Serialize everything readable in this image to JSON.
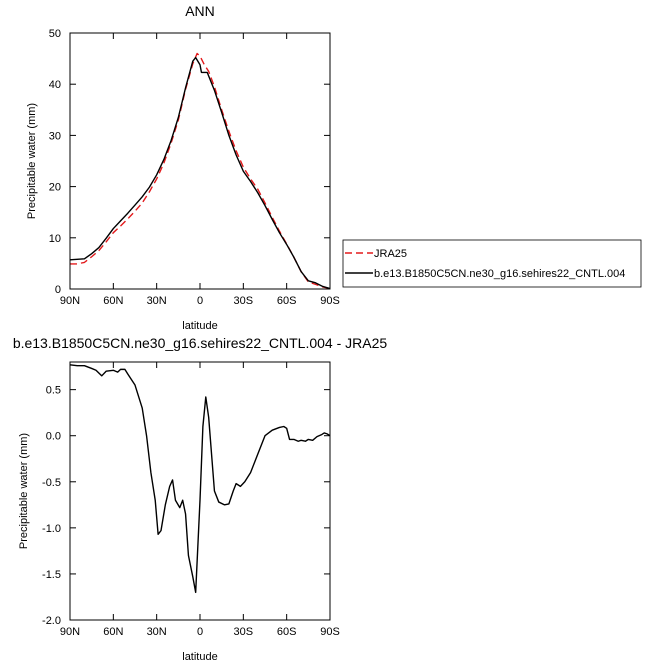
{
  "chart_data": [
    {
      "type": "line",
      "title": "ANN",
      "xlabel": "latitude",
      "ylabel": "Precipitable water (mm)",
      "xlim": [
        90,
        -90
      ],
      "ylim": [
        0,
        50
      ],
      "x_tick_values": [
        90,
        60,
        30,
        0,
        -30,
        -60,
        -90
      ],
      "x_tick_labels": [
        "90N",
        "60N",
        "30N",
        "0",
        "30S",
        "60S",
        "90S"
      ],
      "y_tick_values": [
        0,
        10,
        20,
        30,
        40,
        50
      ],
      "y_tick_labels": [
        "0",
        "10",
        "20",
        "30",
        "40",
        "50"
      ],
      "grid": false,
      "legend_position": "right",
      "series": [
        {
          "name": "JRA25",
          "color": "#e31a1c",
          "dash": "dashed",
          "points": [
            [
              90,
              4.9
            ],
            [
              85,
              4.9
            ],
            [
              80,
              5.2
            ],
            [
              75,
              6.3
            ],
            [
              70,
              7.5
            ],
            [
              65,
              9.2
            ],
            [
              60,
              11.0
            ],
            [
              55,
              12.3
            ],
            [
              50,
              13.7
            ],
            [
              45,
              15.2
            ],
            [
              40,
              16.8
            ],
            [
              35,
              19.0
            ],
            [
              30,
              21.5
            ],
            [
              25,
              24.6
            ],
            [
              20,
              28.5
            ],
            [
              15,
              33.0
            ],
            [
              10,
              39.0
            ],
            [
              5,
              44.0
            ],
            [
              2,
              46.0
            ],
            [
              0,
              45.5
            ],
            [
              -3,
              43.8
            ],
            [
              -6,
              42.5
            ],
            [
              -10,
              39.5
            ],
            [
              -15,
              35.0
            ],
            [
              -20,
              30.8
            ],
            [
              -25,
              27.0
            ],
            [
              -30,
              23.8
            ],
            [
              -35,
              21.5
            ],
            [
              -40,
              19.5
            ],
            [
              -45,
              16.8
            ],
            [
              -50,
              14.0
            ],
            [
              -55,
              11.3
            ],
            [
              -60,
              8.8
            ],
            [
              -65,
              6.2
            ],
            [
              -70,
              3.4
            ],
            [
              -75,
              1.4
            ],
            [
              -80,
              0.9
            ],
            [
              -85,
              0.4
            ],
            [
              -90,
              0.1
            ]
          ]
        },
        {
          "name": "b.e13.B1850C5CN.ne30_g16.sehires22_CNTL.004",
          "color": "#000000",
          "dash": "solid",
          "points": [
            [
              90,
              5.7
            ],
            [
              85,
              5.8
            ],
            [
              80,
              5.9
            ],
            [
              75,
              6.9
            ],
            [
              70,
              8.1
            ],
            [
              65,
              9.9
            ],
            [
              60,
              11.8
            ],
            [
              55,
              13.3
            ],
            [
              50,
              14.8
            ],
            [
              45,
              16.4
            ],
            [
              40,
              18.0
            ],
            [
              35,
              19.9
            ],
            [
              30,
              22.3
            ],
            [
              25,
              25.3
            ],
            [
              20,
              29.0
            ],
            [
              15,
              33.5
            ],
            [
              10,
              39.3
            ],
            [
              5,
              44.5
            ],
            [
              3,
              45.2
            ],
            [
              0,
              43.8
            ],
            [
              -1,
              42.3
            ],
            [
              -5,
              42.3
            ],
            [
              -10,
              38.8
            ],
            [
              -15,
              34.5
            ],
            [
              -20,
              30.0
            ],
            [
              -25,
              26.2
            ],
            [
              -30,
              23.0
            ],
            [
              -35,
              21.0
            ],
            [
              -40,
              18.8
            ],
            [
              -45,
              16.3
            ],
            [
              -50,
              13.6
            ],
            [
              -55,
              11.0
            ],
            [
              -60,
              8.7
            ],
            [
              -65,
              6.2
            ],
            [
              -70,
              3.4
            ],
            [
              -75,
              1.6
            ],
            [
              -80,
              1.2
            ],
            [
              -85,
              0.5
            ],
            [
              -90,
              0.1
            ]
          ]
        }
      ]
    },
    {
      "type": "line",
      "title": "b.e13.B1850C5CN.ne30_g16.sehires22_CNTL.004 - JRA25",
      "xlabel": "latitude",
      "ylabel": "Precipitable water (mm)",
      "xlim": [
        90,
        -90
      ],
      "ylim": [
        -2.0,
        0.8
      ],
      "x_tick_values": [
        90,
        60,
        30,
        0,
        -30,
        -60,
        -90
      ],
      "x_tick_labels": [
        "90N",
        "60N",
        "30N",
        "0",
        "30S",
        "60S",
        "90S"
      ],
      "y_tick_values": [
        0.5,
        0.0,
        -0.5,
        -1.0,
        -1.5,
        -2.0
      ],
      "y_tick_labels": [
        "0.5",
        "0.0",
        "-0.5",
        "-1.0",
        "-1.5",
        "-2.0"
      ],
      "grid": false,
      "series": [
        {
          "color": "#000000",
          "dash": "solid",
          "points": [
            [
              90,
              0.77
            ],
            [
              85,
              0.76
            ],
            [
              80,
              0.76
            ],
            [
              75,
              0.73
            ],
            [
              72,
              0.71
            ],
            [
              68,
              0.65
            ],
            [
              65,
              0.7
            ],
            [
              60,
              0.71
            ],
            [
              57,
              0.69
            ],
            [
              55,
              0.72
            ],
            [
              52,
              0.72
            ],
            [
              50,
              0.67
            ],
            [
              45,
              0.55
            ],
            [
              40,
              0.3
            ],
            [
              37,
              0.0
            ],
            [
              34,
              -0.4
            ],
            [
              31,
              -0.7
            ],
            [
              29,
              -1.07
            ],
            [
              27,
              -1.03
            ],
            [
              24,
              -0.75
            ],
            [
              21,
              -0.55
            ],
            [
              19,
              -0.48
            ],
            [
              17,
              -0.7
            ],
            [
              14,
              -0.78
            ],
            [
              12,
              -0.7
            ],
            [
              10,
              -0.85
            ],
            [
              8,
              -1.3
            ],
            [
              5,
              -1.53
            ],
            [
              3,
              -1.7
            ],
            [
              0,
              -0.7
            ],
            [
              -2,
              0.1
            ],
            [
              -4,
              0.42
            ],
            [
              -6,
              0.2
            ],
            [
              -10,
              -0.6
            ],
            [
              -13,
              -0.72
            ],
            [
              -17,
              -0.75
            ],
            [
              -20,
              -0.74
            ],
            [
              -23,
              -0.6
            ],
            [
              -25,
              -0.52
            ],
            [
              -28,
              -0.55
            ],
            [
              -31,
              -0.5
            ],
            [
              -35,
              -0.4
            ],
            [
              -40,
              -0.2
            ],
            [
              -45,
              0.0
            ],
            [
              -50,
              0.06
            ],
            [
              -55,
              0.09
            ],
            [
              -58,
              0.1
            ],
            [
              -60,
              0.08
            ],
            [
              -62,
              -0.04
            ],
            [
              -65,
              -0.04
            ],
            [
              -68,
              -0.06
            ],
            [
              -70,
              -0.05
            ],
            [
              -73,
              -0.06
            ],
            [
              -75,
              -0.04
            ],
            [
              -78,
              -0.05
            ],
            [
              -81,
              -0.01
            ],
            [
              -84,
              0.01
            ],
            [
              -86,
              0.03
            ],
            [
              -88,
              0.02
            ],
            [
              -90,
              0.0
            ]
          ]
        }
      ]
    }
  ]
}
